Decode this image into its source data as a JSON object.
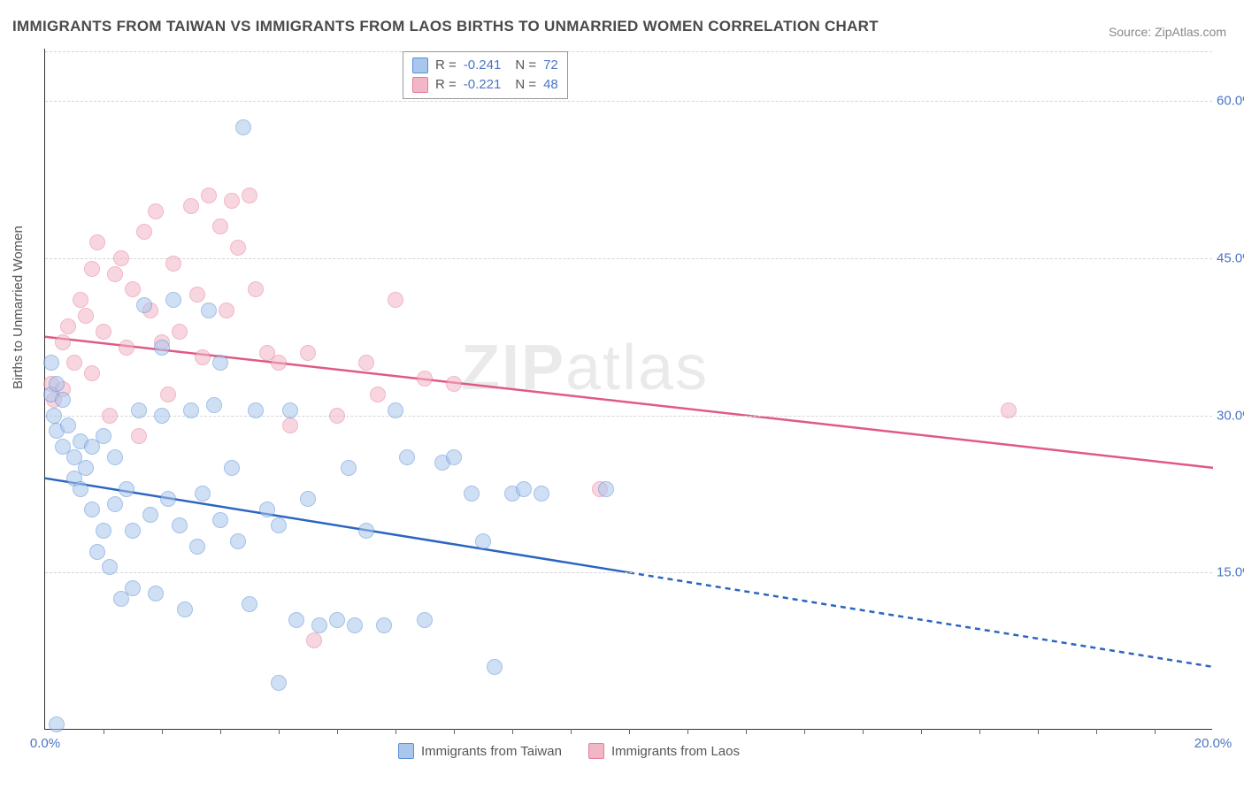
{
  "title": "IMMIGRANTS FROM TAIWAN VS IMMIGRANTS FROM LAOS BIRTHS TO UNMARRIED WOMEN CORRELATION CHART",
  "source": "Source: ZipAtlas.com",
  "watermark": {
    "zip": "ZIP",
    "atlas": "atlas"
  },
  "chart": {
    "type": "scatter",
    "background_color": "#ffffff",
    "grid_color": "#d5d5d5",
    "axis_color": "#333333",
    "tick_color": "#4a75c5",
    "ylabel": "Births to Unmarried Women",
    "ylabel_fontsize": 15,
    "xlim": [
      0,
      20
    ],
    "ylim": [
      0,
      65
    ],
    "yticks": [
      15,
      30,
      45,
      60
    ],
    "ytick_labels": [
      "15.0%",
      "30.0%",
      "45.0%",
      "60.0%"
    ],
    "xticks": [
      0,
      20
    ],
    "xtick_labels": [
      "0.0%",
      "20.0%"
    ],
    "xtick_minor": [
      1,
      2,
      3,
      4,
      5,
      6,
      7,
      8,
      9,
      10,
      11,
      12,
      13,
      14,
      15,
      16,
      17,
      18,
      19
    ],
    "point_radius": 9,
    "point_border_width": 1.5,
    "series": [
      {
        "name": "Immigrants from Taiwan",
        "fill_color": "#a9c6ec",
        "border_color": "#5a8fd6",
        "fill_opacity": 0.55,
        "R": "-0.241",
        "N": "72",
        "trend": {
          "color": "#2a65c0",
          "width": 2.5,
          "x1": 0,
          "y1": 24,
          "x2": 10,
          "y2": 15,
          "dash_x2": 20,
          "dash_y2": 6
        },
        "points": [
          [
            0.1,
            35
          ],
          [
            0.1,
            32
          ],
          [
            0.15,
            30
          ],
          [
            0.2,
            33
          ],
          [
            0.2,
            28.5
          ],
          [
            0.3,
            31.5
          ],
          [
            0.3,
            27
          ],
          [
            0.4,
            29
          ],
          [
            0.5,
            26
          ],
          [
            0.5,
            24
          ],
          [
            0.6,
            27.5
          ],
          [
            0.6,
            23
          ],
          [
            0.7,
            25
          ],
          [
            0.8,
            21
          ],
          [
            0.8,
            27
          ],
          [
            0.9,
            17
          ],
          [
            1.0,
            19
          ],
          [
            1.0,
            28
          ],
          [
            1.1,
            15.5
          ],
          [
            1.2,
            26
          ],
          [
            1.2,
            21.5
          ],
          [
            1.3,
            12.5
          ],
          [
            1.4,
            23
          ],
          [
            1.5,
            13.5
          ],
          [
            1.5,
            19
          ],
          [
            1.6,
            30.5
          ],
          [
            1.7,
            40.5
          ],
          [
            1.8,
            20.5
          ],
          [
            1.9,
            13
          ],
          [
            2.0,
            30
          ],
          [
            2.0,
            36.5
          ],
          [
            2.1,
            22
          ],
          [
            2.2,
            41
          ],
          [
            2.3,
            19.5
          ],
          [
            2.4,
            11.5
          ],
          [
            2.5,
            30.5
          ],
          [
            2.6,
            17.5
          ],
          [
            2.7,
            22.5
          ],
          [
            2.8,
            40
          ],
          [
            2.9,
            31
          ],
          [
            3.0,
            20
          ],
          [
            3.0,
            35
          ],
          [
            3.2,
            25
          ],
          [
            3.3,
            18
          ],
          [
            3.4,
            57.5
          ],
          [
            3.5,
            12
          ],
          [
            3.6,
            30.5
          ],
          [
            3.8,
            21
          ],
          [
            4.0,
            4.5
          ],
          [
            4.0,
            19.5
          ],
          [
            4.2,
            30.5
          ],
          [
            4.3,
            10.5
          ],
          [
            4.5,
            22
          ],
          [
            4.7,
            10
          ],
          [
            5.0,
            10.5
          ],
          [
            5.2,
            25
          ],
          [
            5.3,
            10
          ],
          [
            5.5,
            19
          ],
          [
            5.8,
            10
          ],
          [
            6.0,
            30.5
          ],
          [
            6.2,
            26
          ],
          [
            6.5,
            10.5
          ],
          [
            6.8,
            25.5
          ],
          [
            7.0,
            26
          ],
          [
            7.3,
            22.5
          ],
          [
            7.5,
            18
          ],
          [
            7.7,
            6
          ],
          [
            8.0,
            22.5
          ],
          [
            8.2,
            23
          ],
          [
            8.5,
            22.5
          ],
          [
            9.6,
            23
          ],
          [
            0.2,
            0.5
          ]
        ]
      },
      {
        "name": "Immigrants from Laos",
        "fill_color": "#f2b6c6",
        "border_color": "#e77b9a",
        "fill_opacity": 0.55,
        "R": "-0.221",
        "N": "48",
        "trend": {
          "color": "#e05a82",
          "width": 2.5,
          "x1": 0,
          "y1": 37.5,
          "x2": 20,
          "y2": 25
        },
        "points": [
          [
            0.1,
            33
          ],
          [
            0.15,
            31.5
          ],
          [
            0.3,
            32.5
          ],
          [
            0.3,
            37
          ],
          [
            0.4,
            38.5
          ],
          [
            0.5,
            35
          ],
          [
            0.6,
            41
          ],
          [
            0.7,
            39.5
          ],
          [
            0.8,
            44
          ],
          [
            0.8,
            34
          ],
          [
            0.9,
            46.5
          ],
          [
            1.0,
            38
          ],
          [
            1.1,
            30
          ],
          [
            1.2,
            43.5
          ],
          [
            1.3,
            45
          ],
          [
            1.4,
            36.5
          ],
          [
            1.5,
            42
          ],
          [
            1.6,
            28
          ],
          [
            1.7,
            47.5
          ],
          [
            1.8,
            40
          ],
          [
            1.9,
            49.5
          ],
          [
            2.0,
            37
          ],
          [
            2.1,
            32
          ],
          [
            2.2,
            44.5
          ],
          [
            2.3,
            38
          ],
          [
            2.5,
            50
          ],
          [
            2.6,
            41.5
          ],
          [
            2.7,
            35.5
          ],
          [
            2.8,
            51
          ],
          [
            3.0,
            48
          ],
          [
            3.1,
            40
          ],
          [
            3.2,
            50.5
          ],
          [
            3.3,
            46
          ],
          [
            3.5,
            51
          ],
          [
            3.6,
            42
          ],
          [
            3.8,
            36
          ],
          [
            4.0,
            35
          ],
          [
            4.2,
            29
          ],
          [
            4.5,
            36
          ],
          [
            4.6,
            8.5
          ],
          [
            5.0,
            30
          ],
          [
            5.5,
            35
          ],
          [
            5.7,
            32
          ],
          [
            6.0,
            41
          ],
          [
            6.5,
            33.5
          ],
          [
            7.0,
            33
          ],
          [
            9.5,
            23
          ],
          [
            16.5,
            30.5
          ]
        ]
      }
    ]
  },
  "legend_top": {
    "rows": [
      {
        "swatch_fill": "#a9c6ec",
        "swatch_border": "#5a8fd6",
        "r_label": "R =",
        "r_val": "-0.241",
        "n_label": "N =",
        "n_val": "72"
      },
      {
        "swatch_fill": "#f2b6c6",
        "swatch_border": "#e77b9a",
        "r_label": "R =",
        "r_val": "-0.221",
        "n_label": "N =",
        "n_val": "48"
      }
    ]
  },
  "legend_bottom": {
    "items": [
      {
        "swatch_fill": "#a9c6ec",
        "swatch_border": "#5a8fd6",
        "label": "Immigrants from Taiwan"
      },
      {
        "swatch_fill": "#f2b6c6",
        "swatch_border": "#e77b9a",
        "label": "Immigrants from Laos"
      }
    ]
  }
}
